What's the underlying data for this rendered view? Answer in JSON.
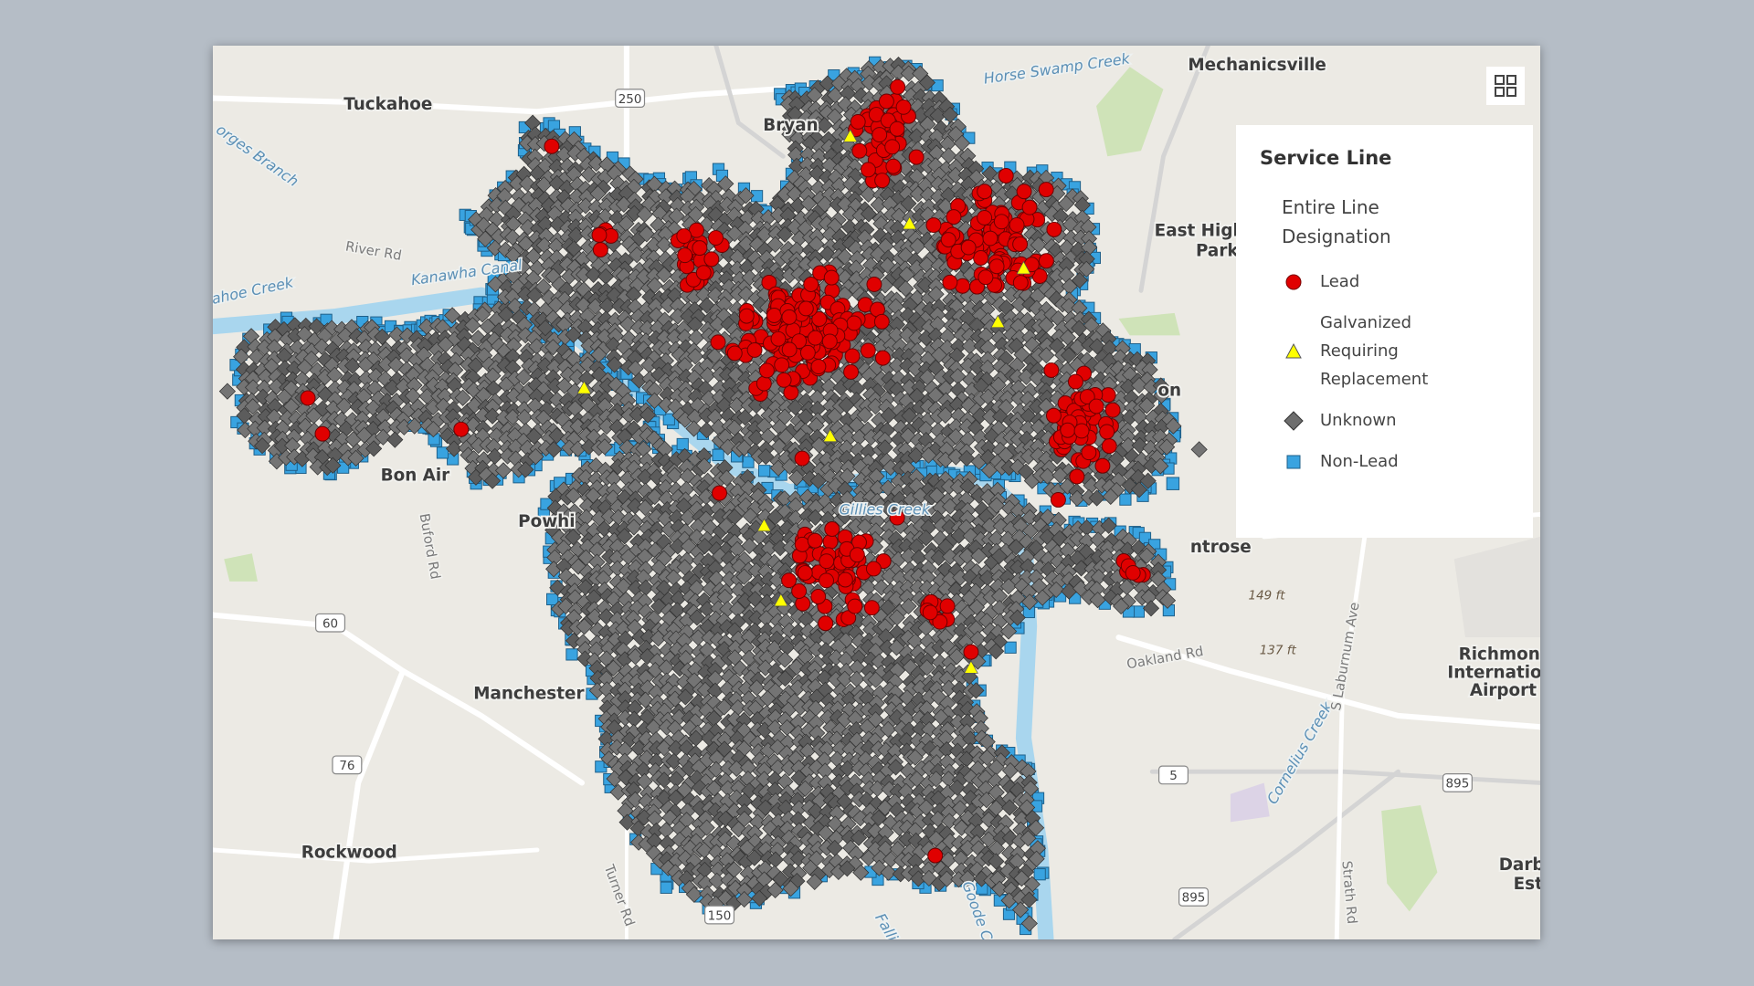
{
  "map": {
    "places": [
      "Tuckahoe",
      "Mechanicsville",
      "Bryan",
      "East High",
      "Park",
      "Bon Air",
      "Manchester",
      "Rockwood",
      "ntrose",
      "Richmond",
      "Internationa",
      "Airport",
      "Darby",
      "Est",
      "Powhi",
      "on"
    ],
    "water": [
      "Horse Swamp Creek",
      "Kanawha Canal",
      "ahoe Creek",
      "orges Branch",
      "Cornelius Creek",
      "Falling Creek",
      "Goode Creek",
      "Gillies Creek"
    ],
    "roads": [
      "River Rd",
      "Buford Rd",
      "Oakland Rd",
      "S Laburnum Ave",
      "Turner Rd",
      "Strath Rd"
    ],
    "shields": [
      "250",
      "60",
      "76",
      "5",
      "895",
      "895",
      "150"
    ],
    "elevations": [
      "149 ft",
      "137 ft"
    ]
  },
  "legend": {
    "title": "Service Line",
    "subtitle": "Entire Line Designation",
    "items": [
      "Lead",
      "Galvanized Requiring Replacement",
      "Unknown",
      "Non-Lead"
    ]
  }
}
